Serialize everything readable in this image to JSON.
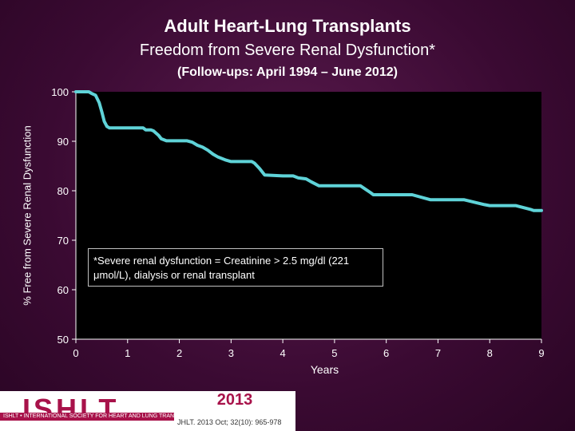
{
  "title": "Adult Heart-Lung Transplants",
  "subtitle": "Freedom from Severe Renal Dysfunction*",
  "subtitle2": "(Follow-ups: April 1994 – June 2012)",
  "footnote": "*Severe renal dysfunction = Creatinine > 2.5 mg/dl (221 μmol/L), dialysis or renal transplant",
  "logo": {
    "word": "ISHLT",
    "tagline": "ISHLT • INTERNATIONAL SOCIETY FOR HEART AND LUNG TRANSPLANTATION"
  },
  "year": "2013",
  "citation": "JHLT. 2013 Oct; 32(10): 965-978",
  "colors": {
    "curve": "#5fd3d8",
    "plot_bg": "#000000",
    "accent": "#a8124a"
  },
  "chart_data": {
    "type": "line",
    "title": "Adult Heart-Lung Transplants",
    "xlabel": "Years",
    "ylabel": "% Free from Severe Renal Dysfunction",
    "xlim": [
      0,
      9
    ],
    "ylim": [
      50,
      100
    ],
    "xticks": [
      0,
      1,
      2,
      3,
      4,
      5,
      6,
      7,
      8,
      9
    ],
    "yticks": [
      50,
      60,
      70,
      80,
      90,
      100
    ],
    "grid": false,
    "series": [
      {
        "x": [
          0,
          0.25,
          0.3,
          0.38,
          0.45,
          0.5,
          0.55,
          0.6,
          0.65,
          0.75,
          1.0,
          1.3,
          1.35,
          1.45,
          1.5,
          1.6,
          1.65,
          1.75,
          2.0,
          2.15,
          2.25,
          2.35,
          2.45,
          2.55,
          2.65,
          2.75,
          2.9,
          3.0,
          3.1,
          3.4,
          3.45,
          3.55,
          3.65,
          4.0,
          4.2,
          4.3,
          4.45,
          4.55,
          4.7,
          5.0,
          5.5,
          5.7,
          5.75,
          6.0,
          6.5,
          6.85,
          7.0,
          7.5,
          7.9,
          8.0,
          8.5,
          8.8,
          8.85,
          9.0
        ],
        "y": [
          100,
          100,
          99.7,
          99.3,
          97.8,
          96,
          94,
          93,
          92.7,
          92.7,
          92.7,
          92.7,
          92.3,
          92.3,
          92.1,
          91.2,
          90.5,
          90.1,
          90.1,
          90.1,
          89.8,
          89.2,
          88.8,
          88.2,
          87.4,
          86.8,
          86.2,
          85.9,
          85.9,
          85.9,
          85.6,
          84.5,
          83.2,
          83.0,
          83.0,
          82.6,
          82.4,
          81.8,
          81.0,
          81.0,
          81.0,
          79.6,
          79.2,
          79.2,
          79.2,
          78.2,
          78.2,
          78.2,
          77.2,
          77.0,
          77.0,
          76.2,
          76.0,
          76.0
        ]
      }
    ]
  }
}
